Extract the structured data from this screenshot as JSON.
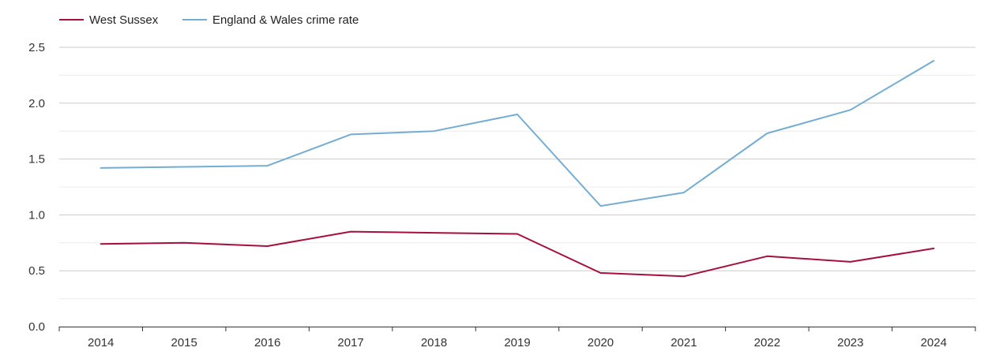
{
  "chart_data": {
    "type": "line",
    "title": "",
    "xlabel": "",
    "ylabel": "",
    "x": [
      "2014",
      "2015",
      "2016",
      "2017",
      "2018",
      "2019",
      "2020",
      "2021",
      "2022",
      "2023",
      "2024"
    ],
    "ylim": [
      0,
      2.5
    ],
    "yticks": [
      "0.0",
      "0.5",
      "1.0",
      "1.5",
      "2.0",
      "2.5"
    ],
    "grid": true,
    "legend_position": "top-left",
    "series": [
      {
        "name": "West Sussex",
        "color": "#a50f3c",
        "values": [
          0.74,
          0.75,
          0.72,
          0.85,
          0.84,
          0.83,
          0.48,
          0.45,
          0.63,
          0.58,
          0.7
        ]
      },
      {
        "name": "England & Wales crime rate",
        "color": "#74add1",
        "values": [
          1.42,
          1.43,
          1.44,
          1.72,
          1.75,
          1.9,
          1.08,
          1.2,
          1.73,
          1.94,
          2.38
        ]
      }
    ]
  }
}
